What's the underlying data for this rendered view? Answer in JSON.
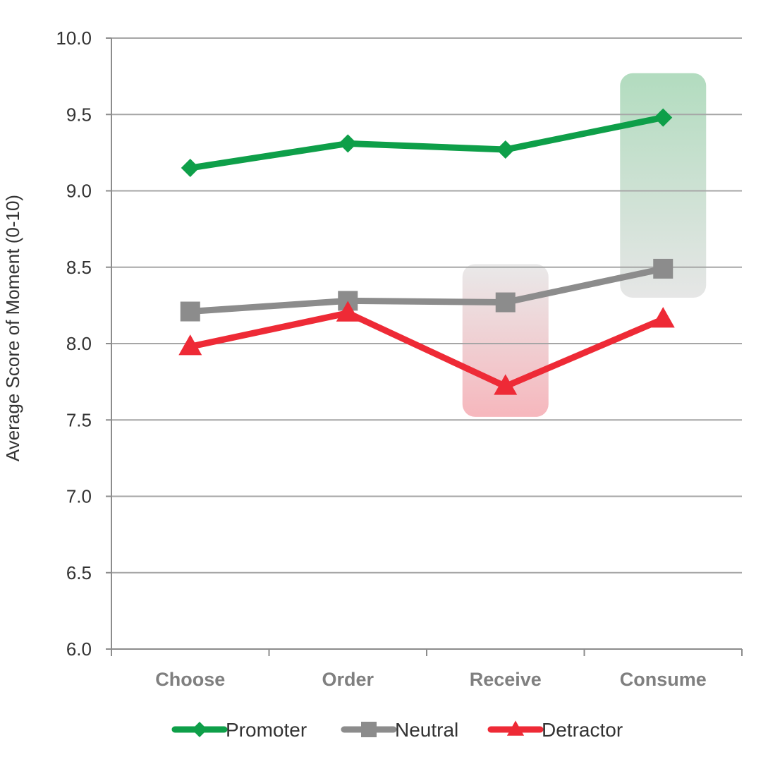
{
  "chart_data": {
    "type": "line",
    "title": "",
    "xlabel": "",
    "ylabel": "Average Score of Moment (0-10)",
    "ylim": [
      6.0,
      10.0
    ],
    "yticks": [
      "6.0",
      "6.5",
      "7.0",
      "7.5",
      "8.0",
      "8.5",
      "9.0",
      "9.5",
      "10.0"
    ],
    "categories": [
      "Choose",
      "Order",
      "Receive",
      "Consume"
    ],
    "grid": "horizontal",
    "legend": "bottom",
    "series": [
      {
        "name": "Promoter",
        "values": [
          9.15,
          9.31,
          9.27,
          9.48
        ],
        "color": "#0e9f49",
        "marker": "diamond"
      },
      {
        "name": "Neutral",
        "values": [
          8.21,
          8.28,
          8.27,
          8.49
        ],
        "color": "#8c8c8c",
        "marker": "square"
      },
      {
        "name": "Detractor",
        "values": [
          7.98,
          8.2,
          7.72,
          8.16
        ],
        "color": "#ee2a36",
        "marker": "triangle"
      }
    ],
    "highlights": [
      {
        "category": "Receive",
        "from": 7.52,
        "to": 8.52,
        "color_top": "#e9e9e9",
        "color_bottom": "#f6b7bd"
      },
      {
        "category": "Consume",
        "from": 8.3,
        "to": 9.77,
        "color_top": "#b2dcbf",
        "color_bottom": "#e6e6e6"
      }
    ]
  }
}
